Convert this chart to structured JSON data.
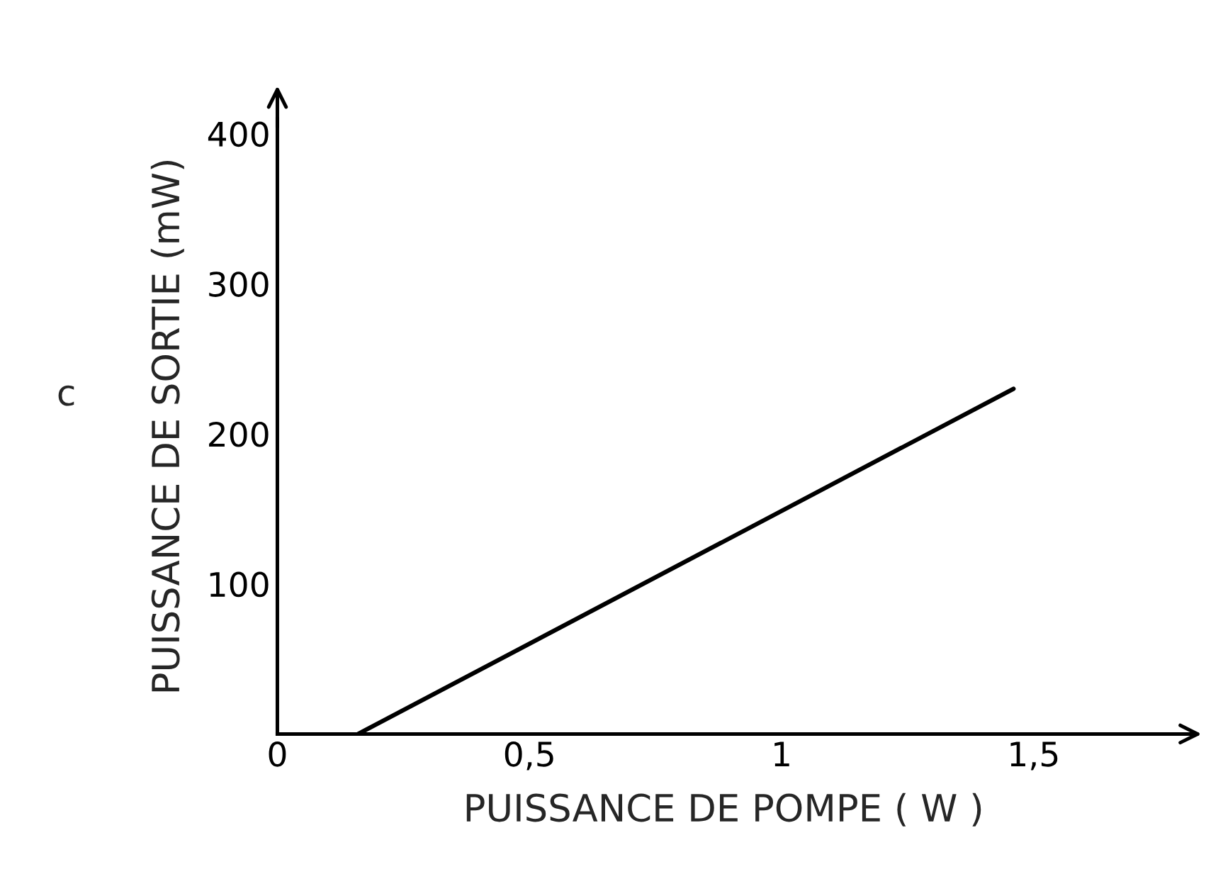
{
  "chart_data": {
    "type": "line",
    "xlabel": "PUISSANCE DE POMPE ( W )",
    "ylabel": "PUISSANCE DE SORTIE (mW)",
    "annotations": [
      "c"
    ],
    "series": [
      {
        "color": "#000000",
        "x": [
          0.16,
          1.46
        ],
        "values": [
          0,
          230
        ]
      }
    ],
    "xlim": [
      0,
      1.77
    ],
    "ylim": [
      0,
      410
    ],
    "xticks": [
      {
        "value": 0,
        "label": "0"
      },
      {
        "value": 0.5,
        "label": "0,5"
      },
      {
        "value": 1,
        "label": "1"
      },
      {
        "value": 1.5,
        "label": "1,5"
      }
    ],
    "yticks": [
      100,
      200,
      300,
      400
    ],
    "grid": false,
    "legend": false,
    "marker": "none",
    "line_style": "solid"
  }
}
